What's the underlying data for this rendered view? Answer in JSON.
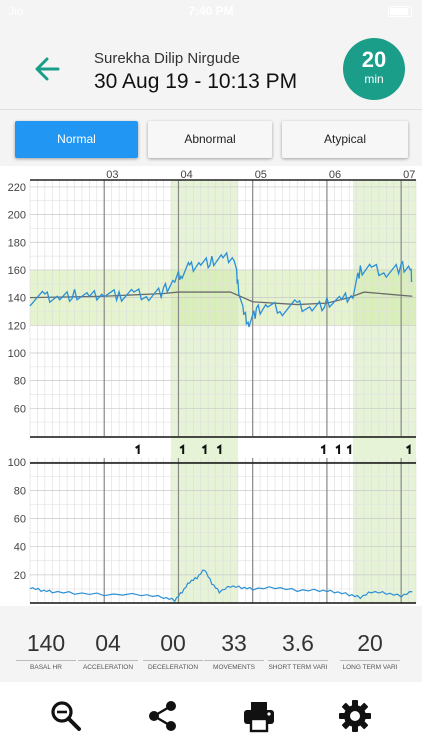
{
  "status_bar": {
    "carrier": "Jio",
    "time": "7:40 PM"
  },
  "header": {
    "back_icon": "arrow-back-icon",
    "patient_name": "Surekha Dilip Nirgude",
    "session_datetime": "30 Aug 19 - 10:13 PM",
    "duration": {
      "value": "20",
      "unit": "min"
    },
    "accent_color": "#1a9e8a"
  },
  "classification": {
    "options": [
      "Normal",
      "Abnormal",
      "Atypical"
    ],
    "selected": "Normal",
    "active_color": "#2196f3"
  },
  "chart_data": [
    {
      "type": "line",
      "series_label": "Fetal heart rate",
      "x_ticks": [
        "03",
        "04",
        "05",
        "06",
        "07"
      ],
      "y_ticks": [
        60,
        80,
        100,
        120,
        140,
        160,
        180,
        200,
        220
      ],
      "ylim": [
        40,
        225
      ],
      "xlim": [
        2.0,
        7.2
      ],
      "grid": true,
      "normal_band": [
        120,
        160
      ],
      "highlight_ranges": [
        [
          3.9,
          4.8
        ],
        [
          6.35,
          7.2
        ]
      ],
      "heart_rate": {
        "x": [
          2.0,
          2.2,
          2.4,
          2.6,
          2.8,
          3.0,
          3.2,
          3.4,
          3.6,
          3.8,
          3.95,
          4.05,
          4.15,
          4.3,
          4.45,
          4.6,
          4.75,
          4.8,
          4.88,
          4.95,
          5.05,
          5.2,
          5.4,
          5.6,
          5.8,
          6.0,
          6.2,
          6.35,
          6.45,
          6.6,
          6.8,
          7.0,
          7.12,
          7.15
        ],
        "y": [
          138,
          141,
          140,
          142,
          140,
          143,
          141,
          144,
          141,
          145,
          152,
          158,
          162,
          165,
          166,
          168,
          169,
          150,
          128,
          122,
          130,
          134,
          131,
          135,
          132,
          136,
          138,
          142,
          160,
          162,
          158,
          162,
          161,
          152
        ]
      },
      "baseline": {
        "x": [
          2.0,
          3.0,
          3.8,
          4.0,
          4.7,
          5.0,
          5.6,
          6.0,
          6.3,
          6.5,
          7.15
        ],
        "y": [
          140,
          141,
          143,
          144,
          144,
          137,
          135,
          136,
          140,
          144,
          141
        ]
      }
    },
    {
      "type": "scatter",
      "series_label": "Fetal movements",
      "x": [
        3.45,
        4.05,
        4.35,
        4.55,
        5.95,
        6.15,
        6.3,
        7.1
      ]
    },
    {
      "type": "line",
      "series_label": "Uterine activity",
      "y_ticks": [
        20,
        40,
        60,
        80,
        100
      ],
      "ylim": [
        0,
        103
      ],
      "highlight_ranges": [
        [
          3.9,
          4.8
        ],
        [
          6.35,
          7.2
        ]
      ],
      "x": [
        2.0,
        2.15,
        2.3,
        2.6,
        3.0,
        3.5,
        3.8,
        3.95,
        4.05,
        4.15,
        4.25,
        4.35,
        4.45,
        4.55,
        4.7,
        4.85,
        5.0,
        5.3,
        5.6,
        5.9,
        6.1,
        6.3,
        6.45,
        6.6,
        6.8,
        7.0,
        7.15
      ],
      "y": [
        11,
        9,
        8,
        7,
        6,
        6,
        4,
        2,
        8,
        15,
        18,
        24,
        14,
        8,
        12,
        11,
        10,
        11,
        9,
        9,
        8,
        6,
        4,
        8,
        7,
        5,
        8
      ]
    }
  ],
  "stats": [
    {
      "value": "140",
      "label": "BASAL HR"
    },
    {
      "value": "04",
      "label": "ACCELERATION"
    },
    {
      "value": "00",
      "label": "DECELERATION"
    },
    {
      "value": "33",
      "label": "MOVEMENTS"
    },
    {
      "value": "3.6",
      "label": "SHORT TERM VARI"
    },
    {
      "value": "20",
      "label": "LONG TERM VARI"
    }
  ],
  "toolbar": {
    "icons": [
      "zoom-out-icon",
      "share-icon",
      "print-icon",
      "settings-icon"
    ]
  }
}
